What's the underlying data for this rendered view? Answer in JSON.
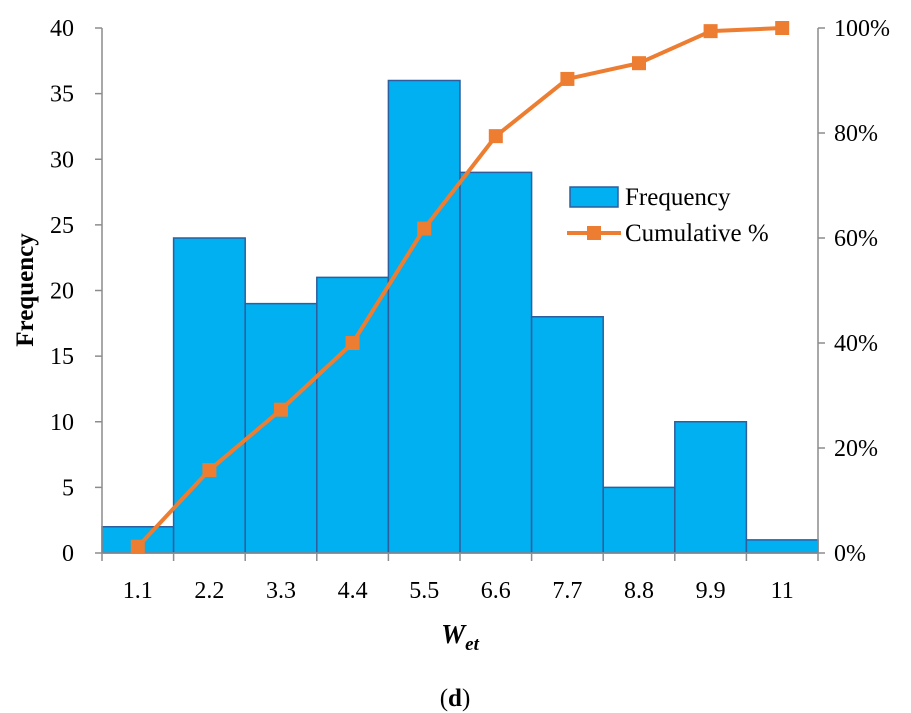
{
  "chart_data": {
    "type": "bar",
    "categories": [
      "1.1",
      "2.2",
      "3.3",
      "4.4",
      "5.5",
      "6.6",
      "7.7",
      "8.8",
      "9.9",
      "11"
    ],
    "series": [
      {
        "name": "Frequency",
        "type": "bar",
        "axis": "left",
        "values": [
          2,
          24,
          19,
          21,
          36,
          29,
          18,
          5,
          10,
          1
        ]
      },
      {
        "name": "Cumulative %",
        "type": "line",
        "axis": "right",
        "values": [
          1.2,
          15.8,
          27.3,
          40.0,
          61.8,
          79.4,
          90.3,
          93.3,
          99.4,
          100.0
        ]
      }
    ],
    "xlabel": {
      "main": "W",
      "sub": "et"
    },
    "ylabel": "Frequency",
    "ylim": [
      0,
      40
    ],
    "yticks": [
      "0",
      "5",
      "10",
      "15",
      "20",
      "25",
      "30",
      "35",
      "40"
    ],
    "y2lim": [
      0,
      100
    ],
    "y2ticks": [
      "0%",
      "20%",
      "40%",
      "60%",
      "80%",
      "100%"
    ],
    "legend_position": "upper-right inside plot",
    "grid": false,
    "colors": {
      "bar_fill": "#00B0F0",
      "bar_edge": "#2E5E9E",
      "line": "#ED7D31",
      "axis": "#8C8C8C"
    },
    "panel_label": "(d)"
  }
}
